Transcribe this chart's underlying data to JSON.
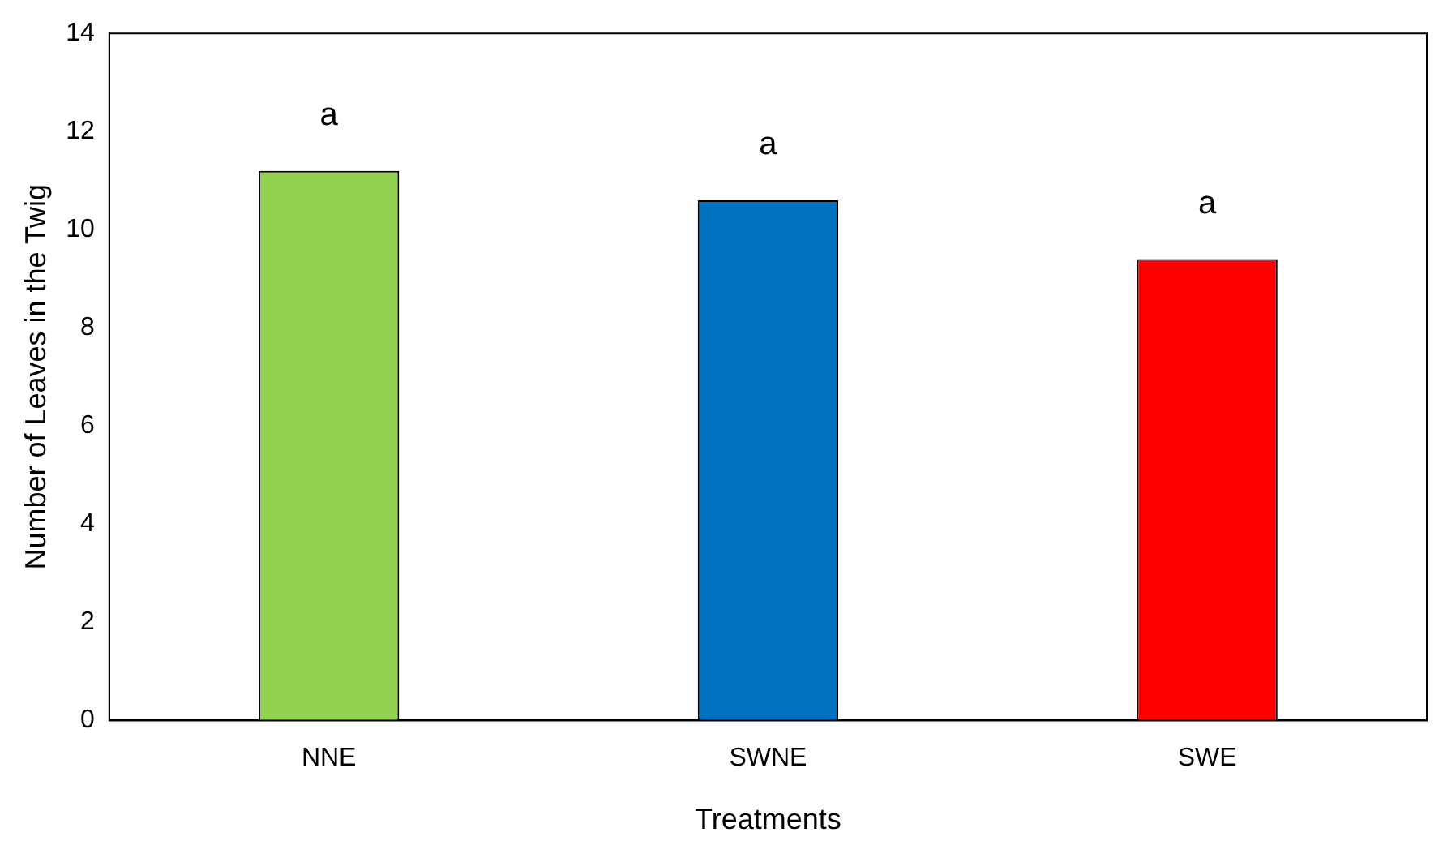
{
  "chart_data": {
    "type": "bar",
    "xlabel": "Treatments",
    "ylabel": "Number of Leaves in the Twig",
    "categories": [
      "NNE",
      "SWNE",
      "SWE"
    ],
    "values": [
      11.2,
      10.6,
      9.4
    ],
    "colors": [
      "#92d050",
      "#0070c0",
      "#ff0000"
    ],
    "ylim": [
      0,
      14
    ],
    "yticks": [
      0,
      2,
      4,
      6,
      8,
      10,
      12,
      14
    ],
    "grid": false,
    "legend": false,
    "annotations": [
      "a",
      "a",
      "a"
    ]
  }
}
